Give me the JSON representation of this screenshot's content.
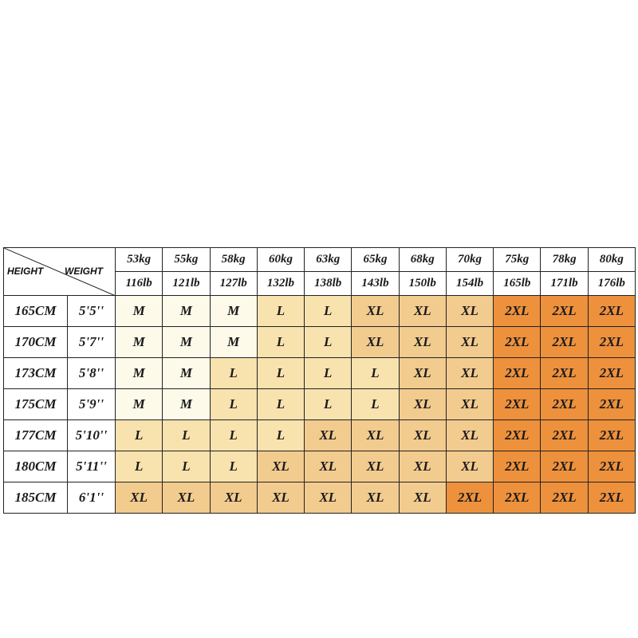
{
  "header": {
    "height_label": "HEIGHT",
    "weight_label": "WEIGHT"
  },
  "columns": [
    {
      "kg": "53kg",
      "lb": "116lb"
    },
    {
      "kg": "55kg",
      "lb": "121lb"
    },
    {
      "kg": "58kg",
      "lb": "127lb"
    },
    {
      "kg": "60kg",
      "lb": "132lb"
    },
    {
      "kg": "63kg",
      "lb": "138lb"
    },
    {
      "kg": "65kg",
      "lb": "143lb"
    },
    {
      "kg": "68kg",
      "lb": "150lb"
    },
    {
      "kg": "70kg",
      "lb": "154lb"
    },
    {
      "kg": "75kg",
      "lb": "165lb"
    },
    {
      "kg": "78kg",
      "lb": "171lb"
    },
    {
      "kg": "80kg",
      "lb": "176lb"
    }
  ],
  "rows": [
    {
      "cm": "165CM",
      "ft": "5'5''",
      "sizes": [
        "M",
        "M",
        "M",
        "L",
        "L",
        "XL",
        "XL",
        "XL",
        "2XL",
        "2XL",
        "2XL"
      ]
    },
    {
      "cm": "170CM",
      "ft": "5'7''",
      "sizes": [
        "M",
        "M",
        "M",
        "L",
        "L",
        "XL",
        "XL",
        "XL",
        "2XL",
        "2XL",
        "2XL"
      ]
    },
    {
      "cm": "173CM",
      "ft": "5'8''",
      "sizes": [
        "M",
        "M",
        "L",
        "L",
        "L",
        "L",
        "XL",
        "XL",
        "2XL",
        "2XL",
        "2XL"
      ]
    },
    {
      "cm": "175CM",
      "ft": "5'9''",
      "sizes": [
        "M",
        "M",
        "L",
        "L",
        "L",
        "L",
        "XL",
        "XL",
        "2XL",
        "2XL",
        "2XL"
      ]
    },
    {
      "cm": "177CM",
      "ft": "5'10''",
      "sizes": [
        "L",
        "L",
        "L",
        "L",
        "XL",
        "XL",
        "XL",
        "XL",
        "2XL",
        "2XL",
        "2XL"
      ]
    },
    {
      "cm": "180CM",
      "ft": "5'11''",
      "sizes": [
        "L",
        "L",
        "L",
        "XL",
        "XL",
        "XL",
        "XL",
        "XL",
        "2XL",
        "2XL",
        "2XL"
      ]
    },
    {
      "cm": "185CM",
      "ft": "6'1''",
      "sizes": [
        "XL",
        "XL",
        "XL",
        "XL",
        "XL",
        "XL",
        "XL",
        "2XL",
        "2XL",
        "2XL",
        "2XL"
      ]
    }
  ]
}
